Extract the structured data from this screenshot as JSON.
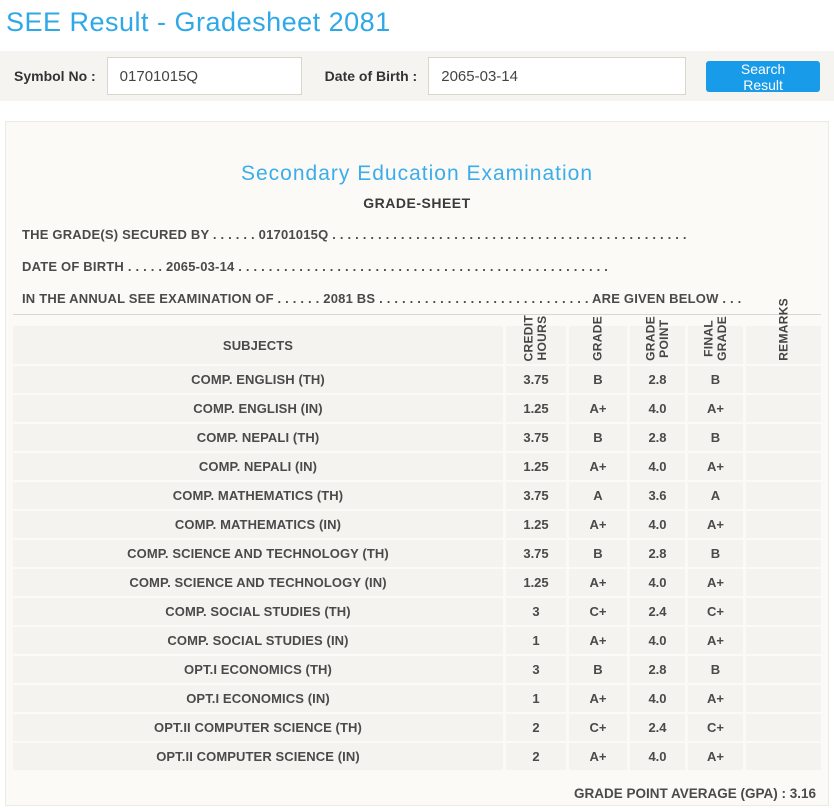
{
  "page": {
    "title": "SEE Result - Gradesheet 2081"
  },
  "search": {
    "symbol_label": "Symbol No :",
    "symbol_value": "01701015Q",
    "dob_label": "Date of Birth :",
    "dob_value": "2065-03-14",
    "button_label": "Search Result"
  },
  "gradesheet": {
    "exam_title": "Secondary Education Examination",
    "sheet_title": "GRADE-SHEET",
    "info_lines": [
      "THE GRADE(S) SECURED BY . . . . . . 01701015Q . . . . . . . . . . . . . . . . . . . . . . . . . . . . . . . . . . . . . . . . . . . . . . .",
      "DATE OF BIRTH . . . . . 2065-03-14 . . . . . . . . . . . . . . . . . . . . . . . . . . . . . . . . . . . . . . . . . . . . . . . . .",
      "IN THE ANNUAL SEE EXAMINATION OF . . . . . . 2081 BS . . . . . . . . . . . . . . . . . . . . . . . . . . . . ARE GIVEN BELOW . . ."
    ],
    "table": {
      "subjects_header": "SUBJECTS",
      "columns": [
        "CREDIT\nHOURS",
        "GRADE",
        "GRADE\nPOINT",
        "FINAL\nGRADE",
        "REMARKS"
      ],
      "rows": [
        {
          "subject": "COMP. ENGLISH (TH)",
          "credit": "3.75",
          "grade": "B",
          "point": "2.8",
          "final": "B",
          "remarks": ""
        },
        {
          "subject": "COMP. ENGLISH (IN)",
          "credit": "1.25",
          "grade": "A+",
          "point": "4.0",
          "final": "A+",
          "remarks": ""
        },
        {
          "subject": "COMP. NEPALI (TH)",
          "credit": "3.75",
          "grade": "B",
          "point": "2.8",
          "final": "B",
          "remarks": ""
        },
        {
          "subject": "COMP. NEPALI (IN)",
          "credit": "1.25",
          "grade": "A+",
          "point": "4.0",
          "final": "A+",
          "remarks": ""
        },
        {
          "subject": "COMP. MATHEMATICS (TH)",
          "credit": "3.75",
          "grade": "A",
          "point": "3.6",
          "final": "A",
          "remarks": ""
        },
        {
          "subject": "COMP. MATHEMATICS (IN)",
          "credit": "1.25",
          "grade": "A+",
          "point": "4.0",
          "final": "A+",
          "remarks": ""
        },
        {
          "subject": "COMP. SCIENCE AND TECHNOLOGY (TH)",
          "credit": "3.75",
          "grade": "B",
          "point": "2.8",
          "final": "B",
          "remarks": ""
        },
        {
          "subject": "COMP. SCIENCE AND TECHNOLOGY (IN)",
          "credit": "1.25",
          "grade": "A+",
          "point": "4.0",
          "final": "A+",
          "remarks": ""
        },
        {
          "subject": "COMP. SOCIAL STUDIES (TH)",
          "credit": "3",
          "grade": "C+",
          "point": "2.4",
          "final": "C+",
          "remarks": ""
        },
        {
          "subject": "COMP. SOCIAL STUDIES (IN)",
          "credit": "1",
          "grade": "A+",
          "point": "4.0",
          "final": "A+",
          "remarks": ""
        },
        {
          "subject": "OPT.I ECONOMICS (TH)",
          "credit": "3",
          "grade": "B",
          "point": "2.8",
          "final": "B",
          "remarks": ""
        },
        {
          "subject": "OPT.I ECONOMICS (IN)",
          "credit": "1",
          "grade": "A+",
          "point": "4.0",
          "final": "A+",
          "remarks": ""
        },
        {
          "subject": "OPT.II COMPUTER SCIENCE (TH)",
          "credit": "2",
          "grade": "C+",
          "point": "2.4",
          "final": "C+",
          "remarks": ""
        },
        {
          "subject": "OPT.II COMPUTER SCIENCE (IN)",
          "credit": "2",
          "grade": "A+",
          "point": "4.0",
          "final": "A+",
          "remarks": ""
        }
      ]
    },
    "gpa_label": "GRADE POINT AVERAGE (GPA) : 3.16"
  },
  "colors": {
    "accent_blue": "#2fa8e8",
    "button_blue": "#189be8"
  }
}
